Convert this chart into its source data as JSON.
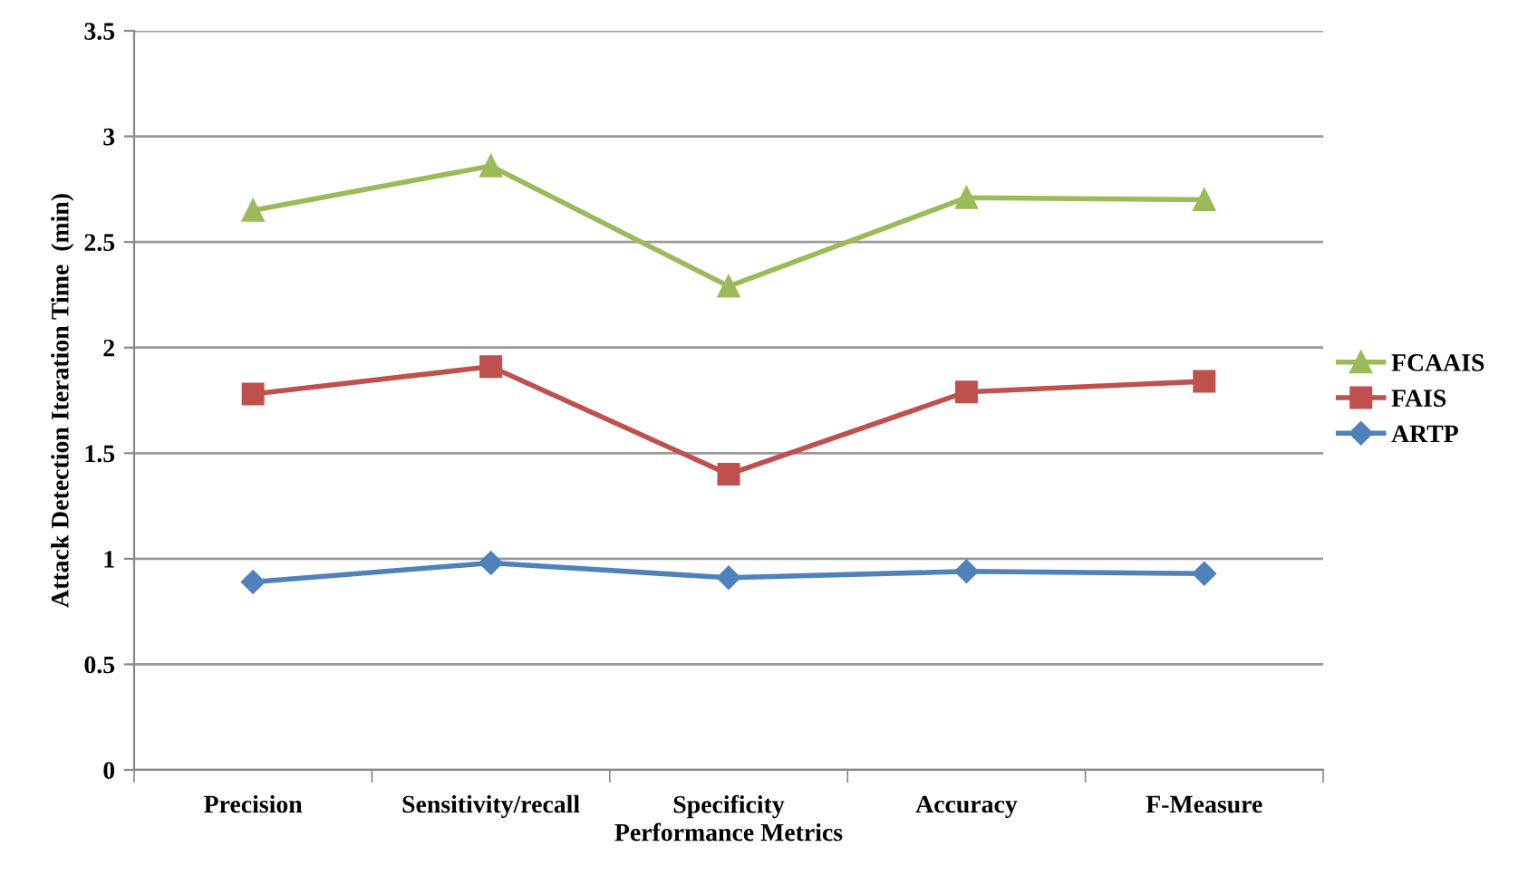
{
  "chart_data": {
    "type": "line",
    "xlabel": "Performance Metrics",
    "ylabel": "Attack Detection Iteration Time  (min)",
    "categories": [
      "Precision",
      "Sensitivity/recall",
      "Specificity",
      "Accuracy",
      "F-Measure"
    ],
    "series": [
      {
        "name": "FCAAIS",
        "color": "#9bbb59",
        "marker": "triangle",
        "values": [
          2.65,
          2.86,
          2.29,
          2.71,
          2.7
        ]
      },
      {
        "name": "FAIS",
        "color": "#c0504d",
        "marker": "square",
        "values": [
          1.78,
          1.91,
          1.4,
          1.79,
          1.84
        ]
      },
      {
        "name": "ARTP",
        "color": "#4f81bd",
        "marker": "diamond",
        "values": [
          0.89,
          0.98,
          0.91,
          0.94,
          0.93
        ]
      }
    ],
    "ylim": [
      0,
      3.5
    ],
    "yticks": [
      0,
      0.5,
      1,
      1.5,
      2,
      2.5,
      3,
      3.5
    ],
    "grid": "y",
    "legend": "right",
    "line_style": "solid"
  }
}
